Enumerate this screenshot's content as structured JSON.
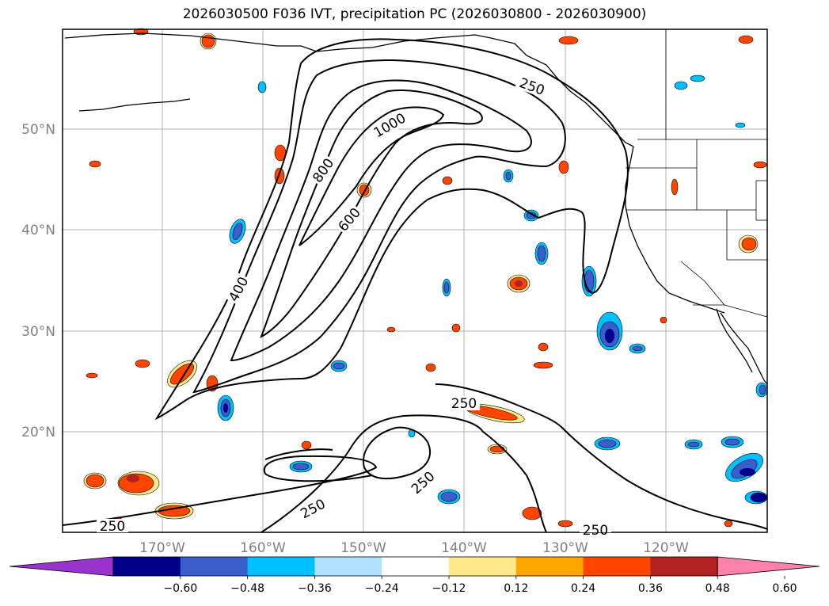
{
  "title": "2026030500 F036 IVT, precipitation PC (2026030800 - 2026030900)",
  "map": {
    "lat_labels": [
      "50°N",
      "40°N",
      "30°N",
      "20°N"
    ],
    "lon_labels": [
      "170°W",
      "160°W",
      "150°W",
      "140°W",
      "130°W",
      "120°W"
    ],
    "contour_labels": [
      "250",
      "250",
      "250",
      "250",
      "250",
      "250",
      "1000",
      "800",
      "600",
      "400"
    ]
  },
  "colorbar": {
    "ticks": [
      "−0.60",
      "−0.48",
      "−0.36",
      "−0.24",
      "−0.12",
      "0.12",
      "0.24",
      "0.36",
      "0.48",
      "0.60"
    ],
    "colors": [
      "#9a33cc",
      "#00008b",
      "#3a5fcd",
      "#00bfff",
      "#b0e2ff",
      "#ffffff",
      "#ffe98a",
      "#ffa500",
      "#ff4500",
      "#b22222",
      "#ff82ab"
    ]
  }
}
